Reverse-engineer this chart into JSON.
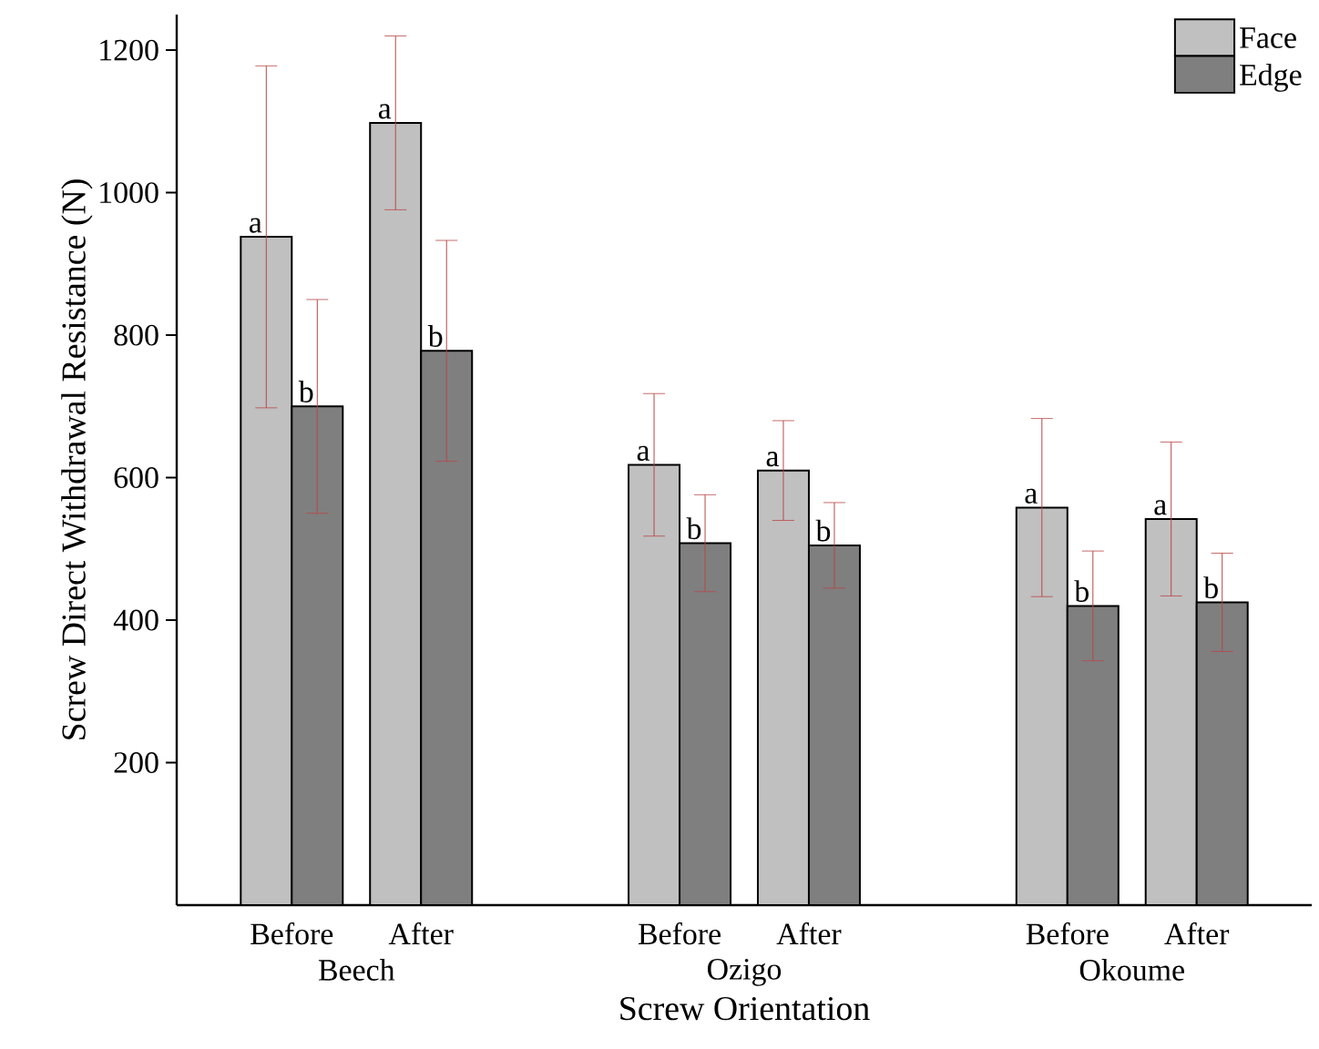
{
  "chart_data": {
    "type": "bar",
    "xlabel": "Screw Orientation",
    "ylabel": "Screw Direct Withdrawal Resistance (N)",
    "categories": [
      "Before",
      "After",
      "Before",
      "After",
      "Before",
      "After"
    ],
    "series": [
      {
        "name": "Face",
        "color": "#c0c0c0",
        "values": [
          938,
          1098,
          618,
          610,
          558,
          542
        ],
        "errors": [
          240,
          122,
          100,
          70,
          125,
          108
        ],
        "value_labels": [
          "a",
          "a",
          "a",
          "a",
          "a",
          "a"
        ]
      },
      {
        "name": "Edge",
        "color": "#7f7f7f",
        "values": [
          700,
          778,
          508,
          505,
          420,
          425
        ],
        "errors": [
          150,
          155,
          68,
          60,
          77,
          69
        ],
        "value_labels": [
          "b",
          "b",
          "b",
          "b",
          "b",
          "b"
        ]
      }
    ],
    "annotations": [
      "Beech",
      "Ozigo",
      "Okoume"
    ],
    "ylim": [
      0,
      1250
    ],
    "yticks": [
      200,
      400,
      600,
      800,
      1000,
      1200
    ],
    "legend": "top right"
  }
}
